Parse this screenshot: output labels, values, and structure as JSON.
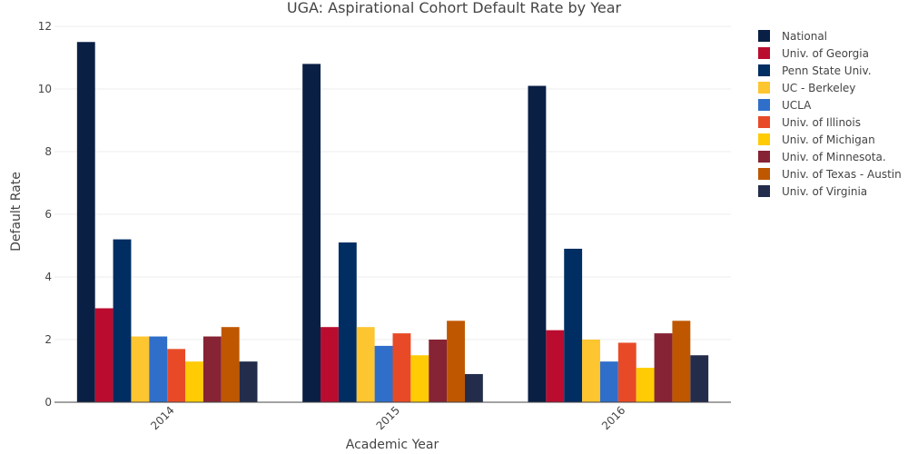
{
  "chart_data": {
    "type": "bar",
    "title": "UGA: Aspirational Cohort Default Rate by Year",
    "xlabel": "Academic Year",
    "ylabel": "Default Rate",
    "ylim": [
      0,
      12
    ],
    "yticks": [
      0,
      2,
      4,
      6,
      8,
      10,
      12
    ],
    "categories": [
      "2014",
      "2015",
      "2016"
    ],
    "grid": true,
    "legend_position": "right",
    "series": [
      {
        "name": "National",
        "color": "#0a1f44",
        "values": [
          11.5,
          10.8,
          10.1
        ]
      },
      {
        "name": "Univ. of Georgia",
        "color": "#ba0c2f",
        "values": [
          3.0,
          2.4,
          2.3
        ]
      },
      {
        "name": "Penn State Univ.",
        "color": "#002d62",
        "values": [
          5.2,
          5.1,
          4.9
        ]
      },
      {
        "name": "UC - Berkeley",
        "color": "#fdc52f",
        "values": [
          2.1,
          2.4,
          2.0
        ]
      },
      {
        "name": "UCLA",
        "color": "#2f6fca",
        "values": [
          2.1,
          1.8,
          1.3
        ]
      },
      {
        "name": "Univ. of Illinois",
        "color": "#e84a27",
        "values": [
          1.7,
          2.2,
          1.9
        ]
      },
      {
        "name": "Univ. of Michigan",
        "color": "#ffcb05",
        "values": [
          1.3,
          1.5,
          1.1
        ]
      },
      {
        "name": "Univ. of Minnesota.",
        "color": "#862334",
        "values": [
          2.1,
          2.0,
          2.2
        ]
      },
      {
        "name": "Univ. of Texas - Austin",
        "color": "#bf5700",
        "values": [
          2.4,
          2.6,
          2.6
        ]
      },
      {
        "name": "Univ. of Virginia",
        "color": "#232d4b",
        "values": [
          1.3,
          0.9,
          1.5
        ]
      }
    ]
  }
}
